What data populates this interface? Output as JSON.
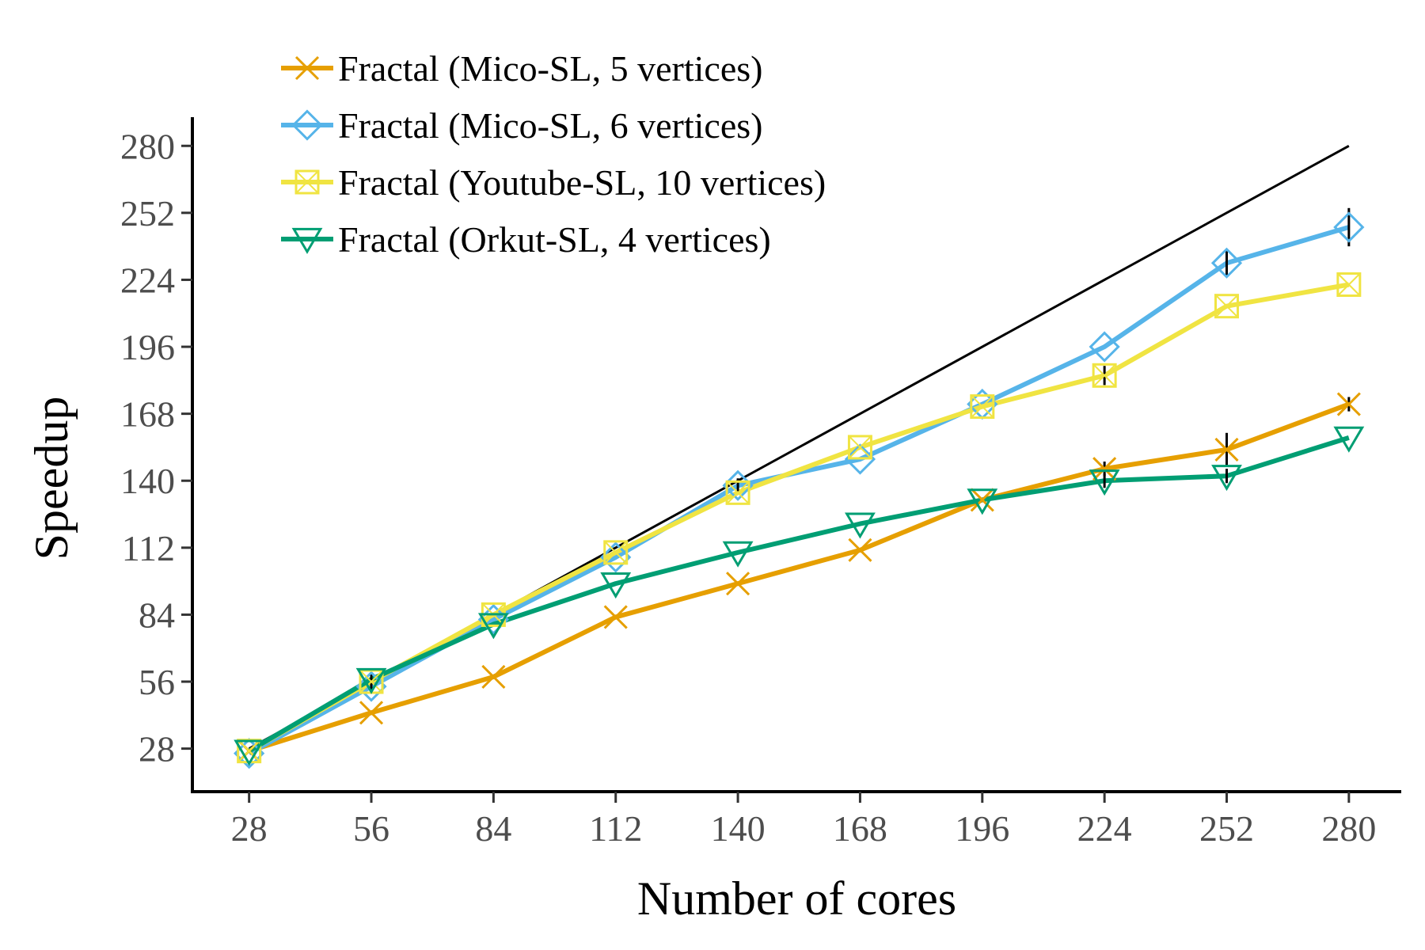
{
  "chart_data": {
    "type": "line",
    "title": "",
    "xlabel": "Number of cores",
    "ylabel": "Speedup",
    "x": [
      28,
      56,
      84,
      112,
      140,
      168,
      196,
      224,
      252,
      280
    ],
    "x_ticks": [
      "28",
      "56",
      "84",
      "112",
      "140",
      "168",
      "196",
      "224",
      "252",
      "280"
    ],
    "y_ticks": [
      "28",
      "56",
      "84",
      "112",
      "140",
      "168",
      "196",
      "224",
      "252",
      "280"
    ],
    "xlim": [
      15,
      292
    ],
    "ylim": [
      10,
      292
    ],
    "grid": false,
    "legend_position": "top-left",
    "ideal_line": {
      "x": [
        28,
        280
      ],
      "y": [
        28,
        280
      ],
      "color": "#000000"
    },
    "series": [
      {
        "name": "Fractal (Mico-SL, 5 vertices)",
        "marker": "x-icon",
        "color": "#E69F00",
        "values": [
          27,
          43,
          58,
          83,
          97,
          111,
          132,
          145,
          153,
          172
        ],
        "errors": [
          0,
          0,
          0,
          0,
          0,
          0,
          0,
          3,
          7,
          3
        ]
      },
      {
        "name": "Fractal (Mico-SL, 6 vertices)",
        "marker": "diamond-icon",
        "color": "#56B4E9",
        "values": [
          26,
          54,
          82,
          108,
          138,
          149,
          172,
          196,
          231,
          246
        ],
        "errors": [
          0,
          3,
          0,
          0,
          3,
          0,
          0,
          0,
          5,
          8
        ]
      },
      {
        "name": "Fractal (Youtube-SL, 10 vertices)",
        "marker": "boxed-x-icon",
        "color": "#F0E442",
        "values": [
          27,
          56,
          84,
          110,
          135,
          154,
          171,
          184,
          213,
          222
        ],
        "errors": [
          0,
          0,
          0,
          0,
          0,
          0,
          0,
          4,
          0,
          0
        ]
      },
      {
        "name": "Fractal (Orkut-SL, 4 vertices)",
        "marker": "triangle-down-icon",
        "color": "#009E73",
        "values": [
          27,
          57,
          80,
          97,
          110,
          122,
          132,
          140,
          142,
          158
        ],
        "errors": [
          0,
          3,
          0,
          0,
          0,
          0,
          0,
          3,
          3,
          0
        ]
      }
    ]
  }
}
